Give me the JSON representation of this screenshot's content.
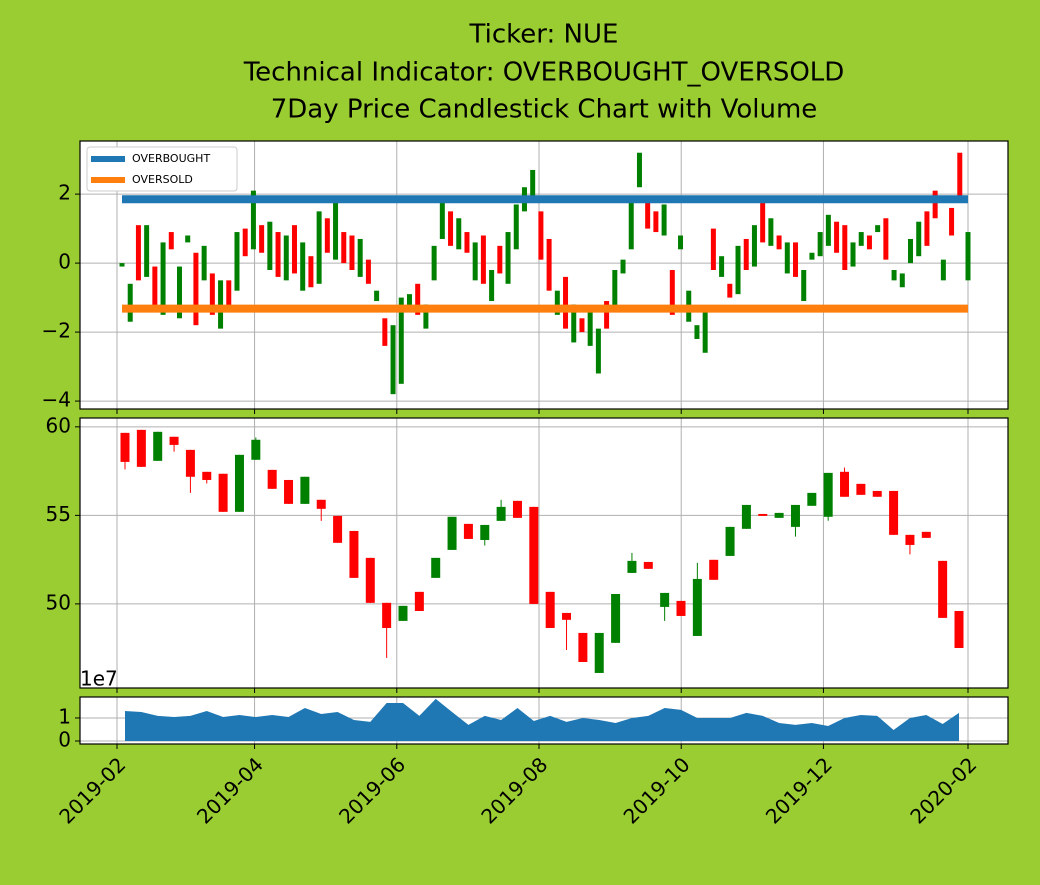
{
  "chart_data": [
    {
      "type": "candlestick",
      "title": [
        "Ticker: NUE",
        "Technical Indicator: OVERBOUGHT_OVERSOLD",
        "7Day Price Candlestick Chart with Volume"
      ],
      "open": [
        -0.1,
        -1.7,
        1.1,
        -0.4,
        -0.1,
        -1.5,
        0.9,
        -1.6,
        0.6,
        0.3,
        -0.5,
        -0.3,
        -1.9,
        -0.5,
        -0.8,
        1.0,
        0.4,
        1.1,
        -0.2,
        0.9,
        -0.5,
        1.1,
        -0.8,
        0.2,
        -0.6,
        1.3,
        0.1,
        0.9,
        0.8,
        -0.4,
        0.1,
        -1.1,
        -1.6,
        -3.8,
        -3.5,
        -1.3,
        -0.6,
        -1.9,
        -0.5,
        0.7,
        1.5,
        0.4,
        0.9,
        -0.5,
        0.8,
        -1.1,
        0.5,
        -0.6,
        0.4,
        1.5,
        1.9,
        1.5,
        0.7,
        -1.5,
        -0.4,
        -2.3,
        -1.6,
        -2.4,
        -3.2,
        -1.1,
        -1.4,
        -0.3,
        0.4,
        2.2,
        1.8,
        1.5,
        0.8,
        -0.2,
        0.4,
        -1.7,
        -2.2,
        -2.6,
        1.0,
        -0.4,
        -0.6,
        -0.9,
        0.7,
        -0.1,
        1.8,
        0.5,
        0.8,
        -0.3,
        0.6,
        -1.1,
        0.1,
        0.2,
        0.5,
        1.2,
        1.1,
        -0.1,
        0.5,
        0.8,
        0.9,
        1.3,
        -0.5,
        -0.7,
        0.0,
        0.2,
        1.5,
        2.1,
        -0.5,
        1.6,
        3.2,
        -0.5
      ],
      "close": [
        0.0,
        -0.6,
        -0.5,
        1.1,
        -1.3,
        0.6,
        0.4,
        -0.1,
        0.8,
        -1.8,
        0.5,
        -1.5,
        -0.5,
        -1.4,
        0.9,
        0.2,
        2.1,
        0.3,
        1.2,
        -0.4,
        0.8,
        -0.3,
        0.6,
        -0.7,
        1.5,
        0.3,
        1.8,
        0.0,
        -0.2,
        0.7,
        -0.6,
        -0.8,
        -2.4,
        -1.8,
        -1.0,
        -0.9,
        -1.5,
        -1.2,
        0.5,
        1.8,
        0.5,
        1.3,
        0.3,
        0.6,
        -0.6,
        -0.2,
        -0.3,
        0.9,
        1.7,
        2.2,
        2.7,
        0.1,
        -0.8,
        -0.8,
        -1.9,
        -1.2,
        -2.0,
        -1.3,
        -1.9,
        -1.9,
        -0.2,
        0.1,
        1.8,
        3.2,
        1.0,
        0.9,
        1.7,
        -1.5,
        0.8,
        -0.8,
        -1.8,
        -1.4,
        -0.2,
        0.2,
        -1.0,
        0.5,
        -0.2,
        1.1,
        0.6,
        1.3,
        0.4,
        0.6,
        -0.4,
        -0.2,
        0.3,
        0.9,
        1.4,
        0.3,
        -0.2,
        0.6,
        0.9,
        0.4,
        1.1,
        0.1,
        -0.2,
        -0.3,
        0.7,
        1.2,
        0.5,
        1.3,
        0.1,
        0.8,
        1.9,
        0.9
      ],
      "up_color": "green",
      "down_color": "red",
      "lines": [
        {
          "name": "OVERBOUGHT",
          "color": "#1f77b4",
          "value": 1.85
        },
        {
          "name": "OVERSOLD",
          "color": "#ff7f0e",
          "value": -1.32
        }
      ],
      "legend": "upper left",
      "ylim": [
        -4.23,
        3.54
      ],
      "yticks": [
        {
          "value": -4,
          "label": "−4"
        },
        {
          "value": -2,
          "label": "−2"
        },
        0,
        2
      ],
      "grid": true
    },
    {
      "type": "candlestick",
      "open": [
        59.66,
        59.83,
        58.08,
        59.44,
        58.7,
        57.46,
        57.35,
        55.2,
        58.14,
        57.57,
        57.0,
        55.65,
        55.88,
        54.97,
        54.12,
        52.6,
        50.06,
        49.04,
        50.68,
        51.47,
        53.05,
        54.52,
        53.61,
        54.69,
        55.82,
        55.48,
        50.68,
        49.49,
        48.36,
        46.1,
        47.8,
        51.75,
        52.37,
        49.83,
        50.17,
        48.19,
        52.49,
        52.71,
        54.24,
        55.08,
        54.86,
        54.35,
        55.54,
        54.92,
        57.46,
        56.78,
        56.38,
        56.38,
        53.9,
        54.07,
        52.43,
        49.6
      ],
      "close": [
        58.02,
        57.74,
        59.72,
        58.98,
        57.18,
        57.0,
        55.2,
        58.42,
        59.27,
        56.5,
        55.65,
        57.18,
        55.37,
        53.45,
        51.47,
        50.06,
        48.64,
        49.89,
        49.6,
        52.6,
        54.92,
        53.67,
        54.46,
        55.48,
        54.86,
        50.0,
        48.64,
        49.1,
        46.72,
        48.36,
        50.56,
        52.43,
        51.98,
        50.62,
        49.32,
        51.41,
        51.36,
        54.35,
        55.59,
        54.97,
        55.14,
        55.59,
        56.27,
        57.4,
        56.05,
        56.16,
        56.05,
        53.9,
        53.33,
        53.73,
        49.21,
        47.51
      ],
      "high": [
        59.66,
        59.83,
        59.72,
        59.44,
        58.7,
        57.46,
        57.35,
        58.42,
        59.4,
        57.57,
        57.0,
        57.18,
        55.88,
        54.97,
        54.12,
        52.6,
        50.06,
        49.89,
        50.68,
        52.6,
        54.92,
        54.52,
        54.46,
        55.88,
        55.82,
        55.48,
        50.68,
        49.49,
        48.36,
        48.36,
        50.56,
        52.88,
        52.37,
        50.62,
        50.17,
        52.32,
        52.49,
        54.35,
        55.59,
        55.08,
        55.14,
        55.59,
        56.27,
        57.4,
        57.7,
        56.78,
        56.38,
        56.38,
        53.9,
        54.07,
        52.43,
        49.6
      ],
      "low": [
        57.6,
        57.74,
        58.08,
        58.6,
        56.27,
        56.8,
        55.2,
        55.2,
        58.14,
        56.5,
        55.65,
        55.65,
        54.69,
        53.45,
        51.47,
        50.06,
        46.95,
        49.04,
        49.6,
        51.47,
        53.05,
        53.67,
        53.3,
        54.69,
        54.86,
        50.0,
        48.64,
        47.4,
        46.72,
        46.1,
        47.8,
        51.75,
        51.98,
        49.04,
        49.32,
        48.19,
        51.36,
        52.71,
        54.24,
        54.97,
        54.86,
        53.8,
        55.54,
        54.7,
        56.05,
        56.16,
        56.05,
        53.9,
        52.8,
        53.73,
        49.21,
        47.51
      ],
      "up_color": "green",
      "down_color": "red",
      "ylim": [
        45.25,
        60.5
      ],
      "yticks": [
        50,
        55,
        60
      ],
      "grid": true
    },
    {
      "type": "area",
      "values": [
        1.3,
        1.26,
        1.09,
        1.04,
        1.09,
        1.3,
        1.04,
        1.13,
        1.04,
        1.13,
        1.04,
        1.43,
        1.17,
        1.26,
        0.91,
        0.83,
        1.65,
        1.65,
        1.09,
        1.83,
        1.26,
        0.7,
        1.09,
        0.91,
        1.43,
        0.87,
        1.09,
        0.83,
        1.0,
        0.91,
        0.78,
        1.0,
        1.09,
        1.43,
        1.35,
        1.0,
        1.0,
        1.0,
        1.22,
        1.09,
        0.78,
        0.7,
        0.78,
        0.65,
        1.0,
        1.13,
        1.09,
        0.48,
        1.0,
        1.13,
        0.74,
        1.22
      ],
      "color": "#1f77b4",
      "ylim": [
        -0.13,
        1.91
      ],
      "yticks": [
        0,
        1
      ],
      "offset_label": "1e7",
      "xticks": [
        "2019-02",
        "2019-04",
        "2019-06",
        "2019-08",
        "2019-10",
        "2019-12",
        "2020-02"
      ],
      "grid": true
    }
  ]
}
